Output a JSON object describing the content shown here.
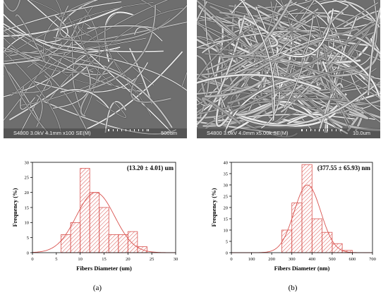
{
  "sem_images": [
    {
      "info": "S4800 3.0kV 4.1mm x100 SE(M)",
      "scale_bar": "500um",
      "fiber_icon": "coarse-fibers"
    },
    {
      "info": "S4800 3.0kV 4.0mm x5.00k SE(M)",
      "scale_bar": "10.0um",
      "fiber_icon": "fine-fibers"
    }
  ],
  "chart_data": [
    {
      "type": "bar",
      "annotation": "(13.20 ± 4.01) um",
      "xlabel": "Fibers Diameter (um)",
      "ylabel": "Frequency (%)",
      "xlim": [
        0,
        30
      ],
      "ylim": [
        0,
        30
      ],
      "xticks": [
        0,
        5,
        10,
        15,
        20,
        25,
        30
      ],
      "yticks": [
        0,
        5,
        10,
        15,
        20,
        25,
        30
      ],
      "bin_width": 2,
      "bins": [
        6,
        8,
        10,
        12,
        14,
        16,
        18,
        20,
        22,
        24
      ],
      "values": [
        6,
        10,
        28,
        20,
        15,
        6,
        6,
        7,
        2,
        0
      ],
      "fit": {
        "type": "gaussian",
        "mean": 13.2,
        "sd": 4.01,
        "peak": 20
      },
      "bar_color": "#d9534f",
      "grid": false
    },
    {
      "type": "bar",
      "annotation": "(377.55 ± 65.93) nm",
      "xlabel": "Fibers Diameter (nm)",
      "ylabel": "Frequency (%)",
      "xlim": [
        0,
        700
      ],
      "ylim": [
        0,
        40
      ],
      "xticks": [
        0,
        100,
        200,
        300,
        400,
        500,
        600,
        700
      ],
      "yticks": [
        0,
        5,
        10,
        15,
        20,
        25,
        30,
        35,
        40
      ],
      "bin_width": 50,
      "bins": [
        250,
        300,
        350,
        400,
        450,
        500,
        550
      ],
      "values": [
        10,
        22,
        39,
        15,
        9,
        4,
        1
      ],
      "fit": {
        "type": "gaussian",
        "mean": 377.55,
        "sd": 65.93,
        "peak": 30
      },
      "bar_color": "#d9534f",
      "grid": false
    }
  ],
  "captions": [
    "(a)",
    "(b)"
  ]
}
